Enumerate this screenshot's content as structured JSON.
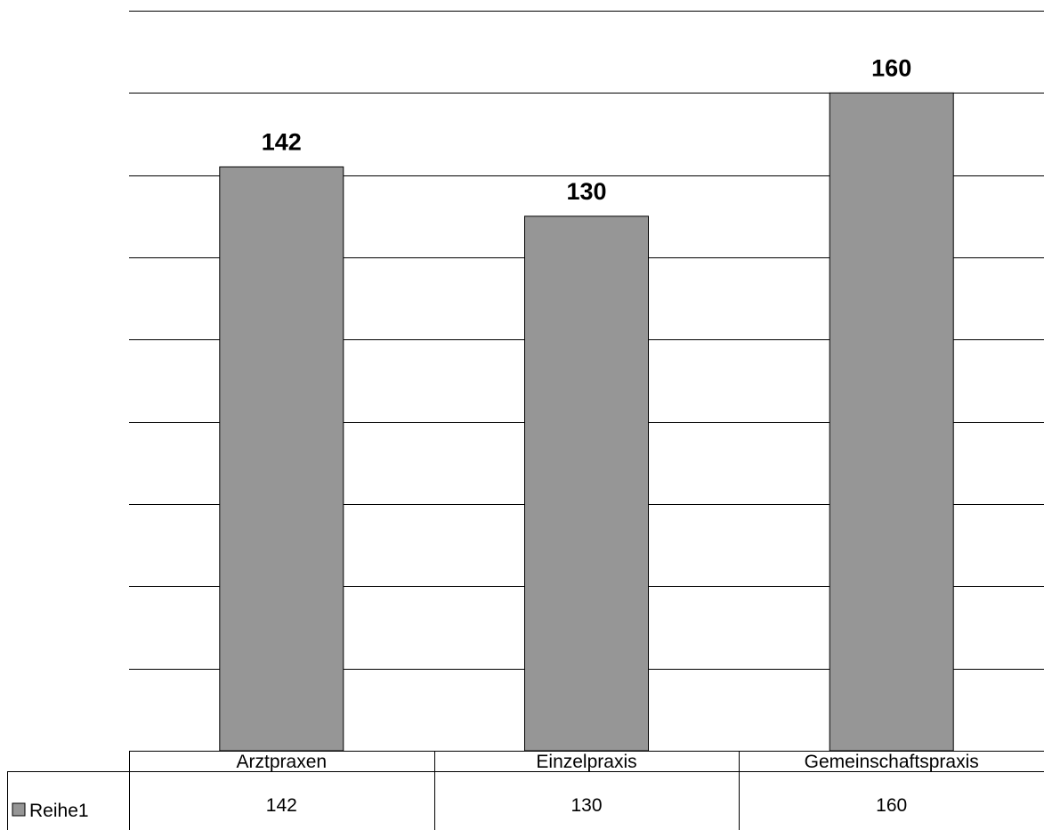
{
  "chart_data": {
    "type": "bar",
    "title": "",
    "xlabel": "",
    "ylabel": "",
    "categories": [
      "Arztpraxen",
      "Einzelpraxis",
      "Gemeinschaftspraxis"
    ],
    "series": [
      {
        "name": "Reihe1",
        "values": [
          142,
          130,
          160
        ]
      }
    ],
    "data_labels": [
      "142",
      "130",
      "160"
    ],
    "table_values": [
      "142",
      "130",
      "160"
    ],
    "ylim": [
      0,
      180
    ],
    "gridline_step": 20,
    "grid": true,
    "data_table": true,
    "legend": "data-table-row",
    "colors": {
      "bar": "#969696",
      "bar_stroke": "#000000",
      "grid": "#000000",
      "background": "#ffffff"
    }
  }
}
